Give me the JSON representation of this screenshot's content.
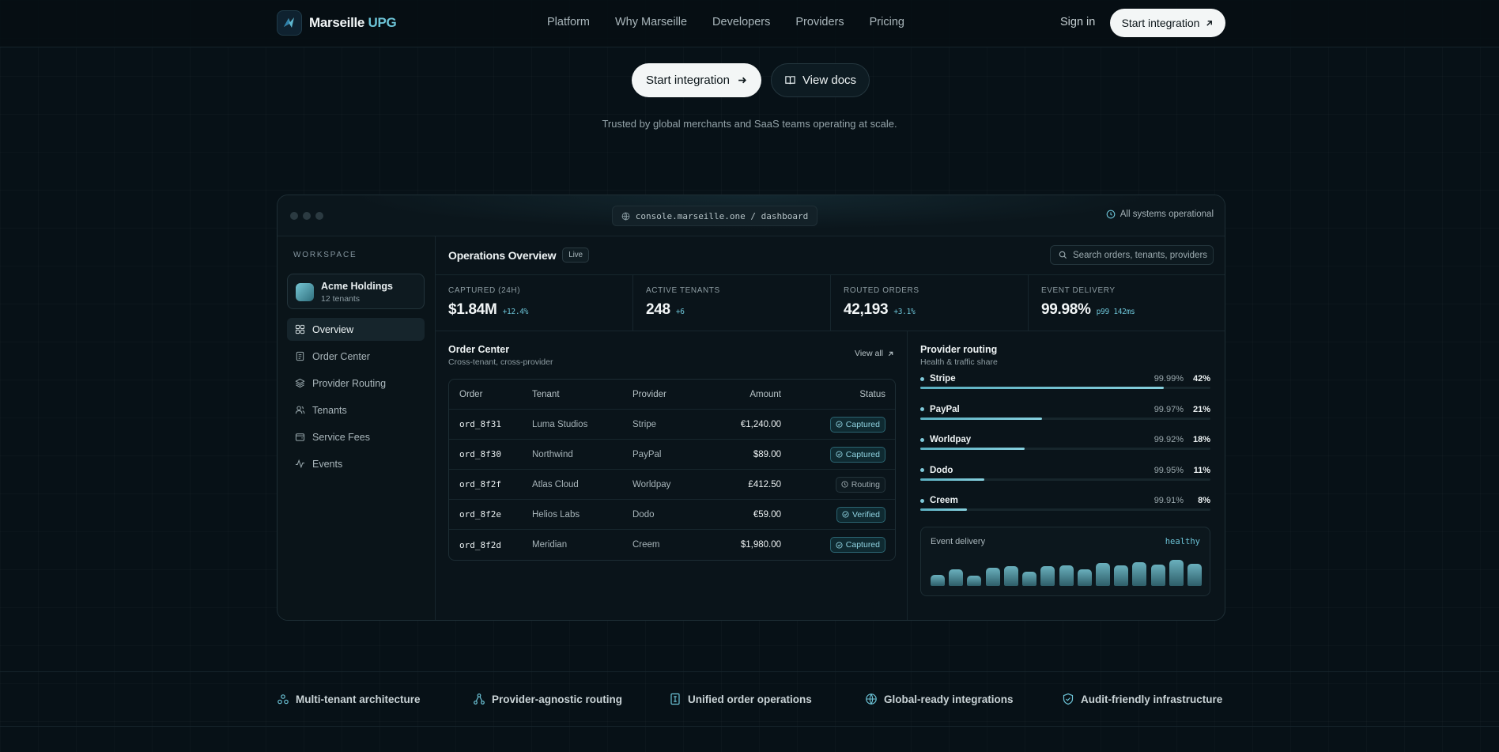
{
  "nav": {
    "brand_name": "Marseille",
    "brand_accent": "UPG",
    "links": [
      "Platform",
      "Why Marseille",
      "Developers",
      "Providers",
      "Pricing"
    ],
    "signin": "Sign in",
    "cta": "Start integration"
  },
  "hero": {
    "primary_cta": "Start integration",
    "secondary_cta": "View docs",
    "trusted": "Trusted by global merchants and SaaS teams operating at scale."
  },
  "console": {
    "url": "console.marseille.one / dashboard",
    "system_status": "All systems operational",
    "sidebar": {
      "workspace_label": "WORKSPACE",
      "tenant_name": "Acme Holdings",
      "tenant_count": "12 tenants",
      "items": [
        {
          "label": "Overview",
          "icon": "grid-icon",
          "active": true
        },
        {
          "label": "Order Center",
          "icon": "document-icon",
          "active": false
        },
        {
          "label": "Provider Routing",
          "icon": "layers-icon",
          "active": false
        },
        {
          "label": "Tenants",
          "icon": "users-icon",
          "active": false
        },
        {
          "label": "Service Fees",
          "icon": "wallet-icon",
          "active": false
        },
        {
          "label": "Events",
          "icon": "activity-icon",
          "active": false
        }
      ]
    },
    "main": {
      "title": "Operations Overview",
      "badge": "Live",
      "search_placeholder": "Search orders, tenants, providers",
      "metrics": [
        {
          "label": "CAPTURED (24H)",
          "value": "$1.84M",
          "delta": "+12.4%"
        },
        {
          "label": "ACTIVE TENANTS",
          "value": "248",
          "delta": "+6"
        },
        {
          "label": "ROUTED ORDERS",
          "value": "42,193",
          "delta": "+3.1%"
        },
        {
          "label": "EVENT DELIVERY",
          "value": "99.98%",
          "delta": "p99 142ms"
        }
      ],
      "orders": {
        "title": "Order Center",
        "subtitle": "Cross-tenant, cross-provider",
        "view_all": "View all",
        "columns": [
          "Order",
          "Tenant",
          "Provider",
          "Amount",
          "Status"
        ],
        "rows": [
          {
            "order": "ord_8f31",
            "tenant": "Luma Studios",
            "provider": "Stripe",
            "amount": "€1,240.00",
            "status": "Captured",
            "tone": "ok"
          },
          {
            "order": "ord_8f30",
            "tenant": "Northwind",
            "provider": "PayPal",
            "amount": "$89.00",
            "status": "Captured",
            "tone": "ok"
          },
          {
            "order": "ord_8f2f",
            "tenant": "Atlas Cloud",
            "provider": "Worldpay",
            "amount": "£412.50",
            "status": "Routing",
            "tone": "neutral"
          },
          {
            "order": "ord_8f2e",
            "tenant": "Helios Labs",
            "provider": "Dodo",
            "amount": "€59.00",
            "status": "Verified",
            "tone": "ok"
          },
          {
            "order": "ord_8f2d",
            "tenant": "Meridian",
            "provider": "Creem",
            "amount": "$1,980.00",
            "status": "Captured",
            "tone": "ok"
          }
        ]
      },
      "routing": {
        "title": "Provider routing",
        "subtitle": "Health & traffic share",
        "providers": [
          {
            "name": "Stripe",
            "uptime": "99.99%",
            "share": "42%",
            "fill": 0.84
          },
          {
            "name": "PayPal",
            "uptime": "99.97%",
            "share": "21%",
            "fill": 0.42
          },
          {
            "name": "Worldpay",
            "uptime": "99.92%",
            "share": "18%",
            "fill": 0.36
          },
          {
            "name": "Dodo",
            "uptime": "99.95%",
            "share": "11%",
            "fill": 0.22
          },
          {
            "name": "Creem",
            "uptime": "99.91%",
            "share": "8%",
            "fill": 0.16
          }
        ],
        "delivery_label": "Event delivery",
        "delivery_state": "healthy",
        "delivery_levels": [
          0.38,
          0.55,
          0.35,
          0.6,
          0.66,
          0.48,
          0.66,
          0.68,
          0.55,
          0.76,
          0.69,
          0.8,
          0.7,
          0.86,
          0.75
        ]
      }
    }
  },
  "features": [
    {
      "label": "Multi-tenant architecture",
      "icon": "network-icon"
    },
    {
      "label": "Provider-agnostic routing",
      "icon": "routing-icon"
    },
    {
      "label": "Unified order operations",
      "icon": "receipt-icon"
    },
    {
      "label": "Global-ready integrations",
      "icon": "globe-icon"
    },
    {
      "label": "Audit-friendly infrastructure",
      "icon": "shield-icon"
    }
  ],
  "colors": {
    "background": "#071117",
    "accent": "#6cc3d6",
    "surface": "#0a141a"
  }
}
